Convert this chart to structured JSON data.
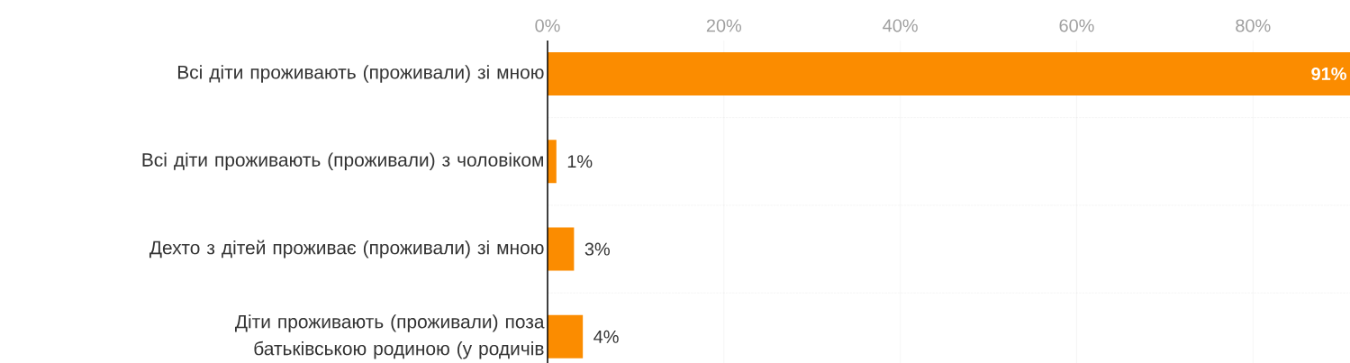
{
  "chart_data": {
    "type": "bar",
    "orientation": "horizontal",
    "categories": [
      "Всі діти проживають (проживали) зі мною",
      "Всі діти проживають (проживали) з чоловіком",
      "Дехто з дітей проживає (проживали) зі мною",
      "Діти проживають (проживали) поза батьківською родиною (у родичів"
    ],
    "values": [
      91,
      1,
      3,
      4
    ],
    "value_labels": [
      "91%",
      "1%",
      "3%",
      "4%"
    ],
    "color": "#fb8c00",
    "xlim": [
      0,
      91
    ],
    "xticks": [
      {
        "value": 0,
        "label": "0%"
      },
      {
        "value": 20,
        "label": "20%"
      },
      {
        "value": 40,
        "label": "40%"
      },
      {
        "value": 60,
        "label": "60%"
      },
      {
        "value": 80,
        "label": "80%"
      }
    ],
    "grid": "x"
  }
}
